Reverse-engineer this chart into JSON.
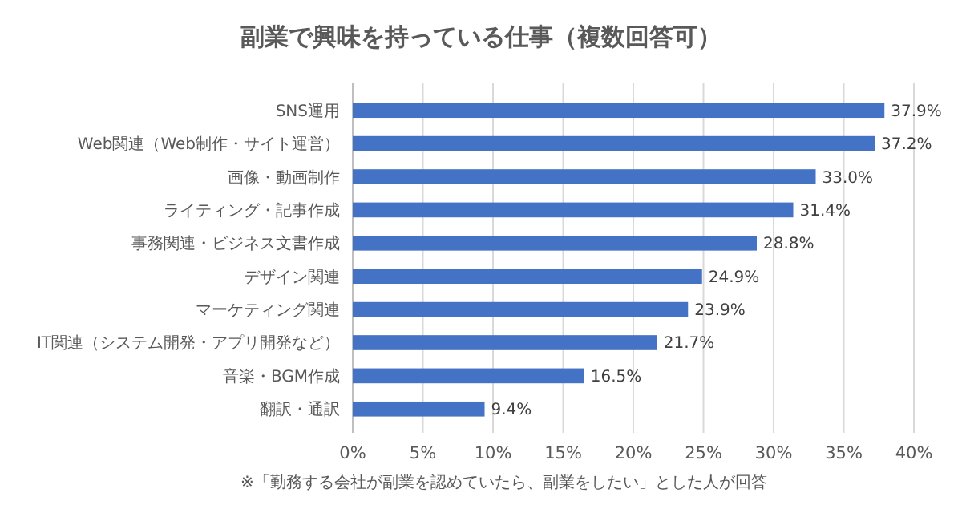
{
  "chart_data": {
    "type": "bar",
    "orientation": "horizontal",
    "title": "副業で興味を持っている仕事（複数回答可）",
    "categories": [
      "SNS運用",
      "Web関連（Web制作・サイト運営）",
      "画像・動画制作",
      "ライティング・記事作成",
      "事務関連・ビジネス文書作成",
      "デザイン関連",
      "マーケティング関連",
      "IT関連（システム開発・アプリ開発など）",
      "音楽・BGM作成",
      "翻訳・通訳"
    ],
    "values": [
      37.9,
      37.2,
      33.0,
      31.4,
      28.8,
      24.9,
      23.9,
      21.7,
      16.5,
      9.4
    ],
    "value_labels": [
      "37.9%",
      "37.2%",
      "33.0%",
      "31.4%",
      "28.8%",
      "24.9%",
      "23.9%",
      "21.7%",
      "16.5%",
      "9.4%"
    ],
    "color": "#4472c4",
    "xlim": [
      0,
      40
    ],
    "xticks": [
      {
        "value": 0,
        "label": "0%"
      },
      {
        "value": 5,
        "label": "5%"
      },
      {
        "value": 10,
        "label": "10%"
      },
      {
        "value": 15,
        "label": "15%"
      },
      {
        "value": 20,
        "label": "20%"
      },
      {
        "value": 25,
        "label": "25%"
      },
      {
        "value": 30,
        "label": "30%"
      },
      {
        "value": 35,
        "label": "35%"
      },
      {
        "value": 40,
        "label": "40%"
      }
    ],
    "grid": "x",
    "annotations": [
      "※「勤務する会社が副業を認めていたら、副業をしたい」とした人が回答"
    ]
  }
}
